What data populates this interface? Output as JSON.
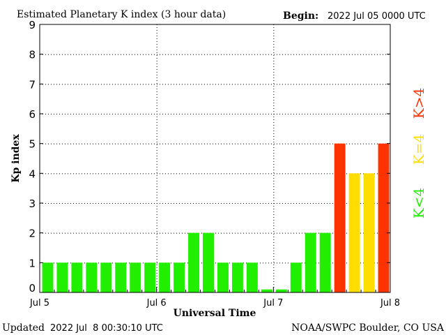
{
  "chart_data": {
    "type": "bar",
    "title": "Estimated Planetary K index (3 hour data)",
    "begin_label": "Begin:",
    "begin_value": "2022 Jul 05 0000 UTC",
    "xlabel": "Universal Time",
    "ylabel": "Kp index",
    "ylim": [
      0,
      9
    ],
    "yticks": [
      "0",
      "1",
      "2",
      "3",
      "4",
      "5",
      "6",
      "7",
      "8",
      "9"
    ],
    "x_tick_labels": [
      "Jul 5",
      "Jul 6",
      "Jul 7",
      "Jul 8"
    ],
    "grid": true,
    "values": [
      1,
      1,
      1,
      1,
      1,
      1,
      1,
      1,
      1,
      1,
      2,
      2,
      1,
      1,
      1,
      0.1,
      0.1,
      1,
      2,
      2,
      5,
      4,
      4,
      5
    ],
    "legend": {
      "placement": "right",
      "items": [
        {
          "label": "K>4",
          "color": "#ff3300"
        },
        {
          "label": "K=4",
          "color": "#ffdd00"
        },
        {
          "label": "K<4",
          "color": "#22ee00"
        }
      ]
    },
    "colors": {
      "below4": "#22ee00",
      "equal4": "#ffdd00",
      "above4": "#ff3300"
    }
  },
  "footer": {
    "updated_label": "Updated",
    "updated_value": "2022 Jul  8 00:30:10 UTC",
    "source": "NOAA/SWPC Boulder, CO USA"
  }
}
